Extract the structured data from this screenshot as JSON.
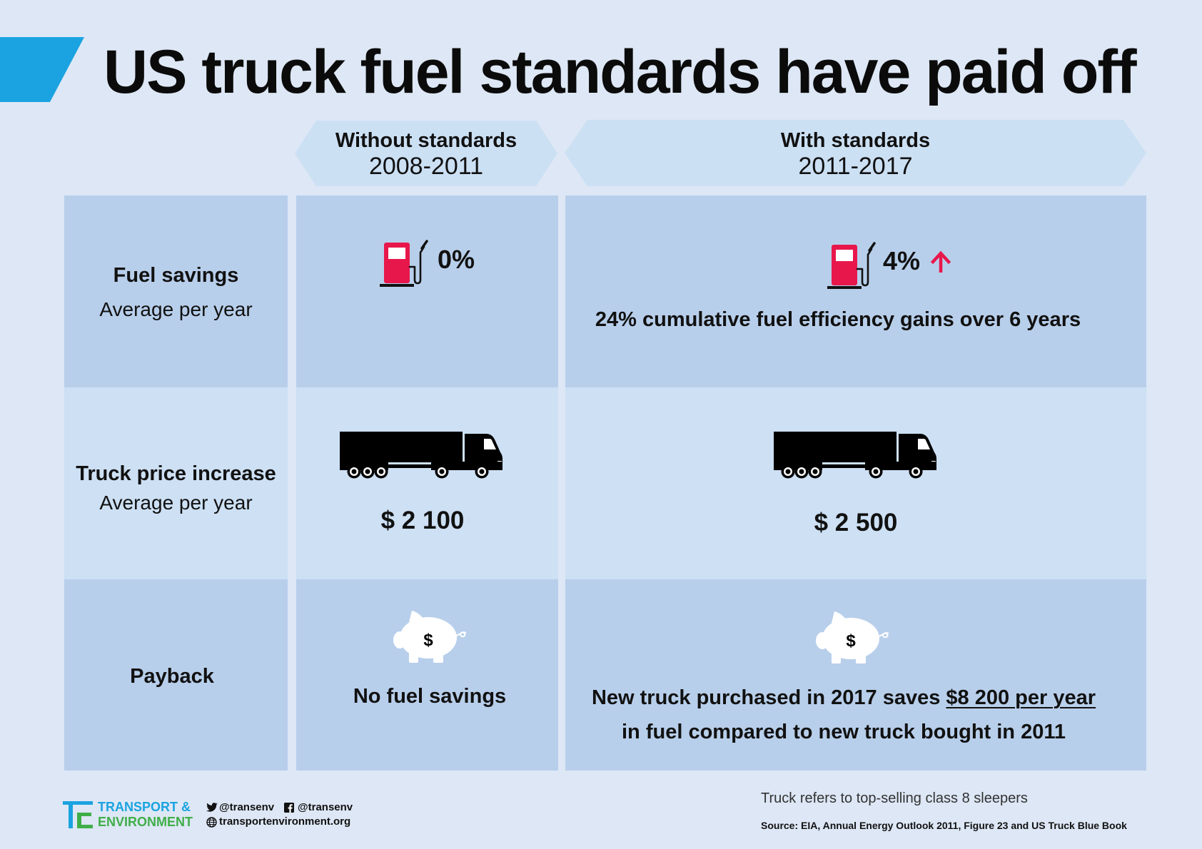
{
  "title": "US truck fuel standards have paid off",
  "columns": [
    {
      "label": "Without standards",
      "period": "2008-2011"
    },
    {
      "label": "With standards",
      "period": "2011-2017"
    }
  ],
  "rows": [
    {
      "label": "Fuel savings",
      "sublabel": "Average per year",
      "icon": "fuel-pump-icon",
      "without": {
        "value": "0%"
      },
      "with": {
        "value": "4%",
        "icon": "up-arrow-icon",
        "note": "24% cumulative fuel efficiency gains over 6 years"
      }
    },
    {
      "label": "Truck price increase",
      "sublabel": "Average per year",
      "icon": "truck-icon",
      "without": {
        "value": "$ 2 100"
      },
      "with": {
        "value": "$ 2 500"
      }
    },
    {
      "label": "Payback",
      "icon": "piggy-bank-icon",
      "icon_symbol": "$",
      "without": {
        "text": "No fuel savings"
      },
      "with": {
        "line1_prefix": "New truck purchased in 2017 saves ",
        "line1_highlight": "$8 200 per year",
        "line2": "in fuel compared to new truck bought in 2011"
      }
    }
  ],
  "footer": {
    "logo_icon": "te-logo-icon",
    "brand_line1": "TRANSPORT &",
    "brand_line2": "ENVIRONMENT",
    "twitter_icon": "twitter-icon",
    "twitter": "@transenv",
    "facebook_icon": "facebook-icon",
    "facebook": "@transenv",
    "website_icon": "globe-icon",
    "website": "transportenvironment.org",
    "note": "Truck refers to top-selling class 8 sleepers",
    "source": "Source: EIA, Annual Energy Outlook 2011, Figure 23 and US Truck Blue Book"
  },
  "colors": {
    "background": "#dde7f5",
    "cell_dark": "#b8cfeb",
    "cell_light": "#cde0f4",
    "header_shape": "#cce0f4",
    "title_accent": "#1aa3e0",
    "pump_red": "#e8174b",
    "arrow_red": "#e8174b",
    "brand_cyan": "#1aa3e0",
    "brand_green": "#3fae49",
    "text": "#111111"
  }
}
